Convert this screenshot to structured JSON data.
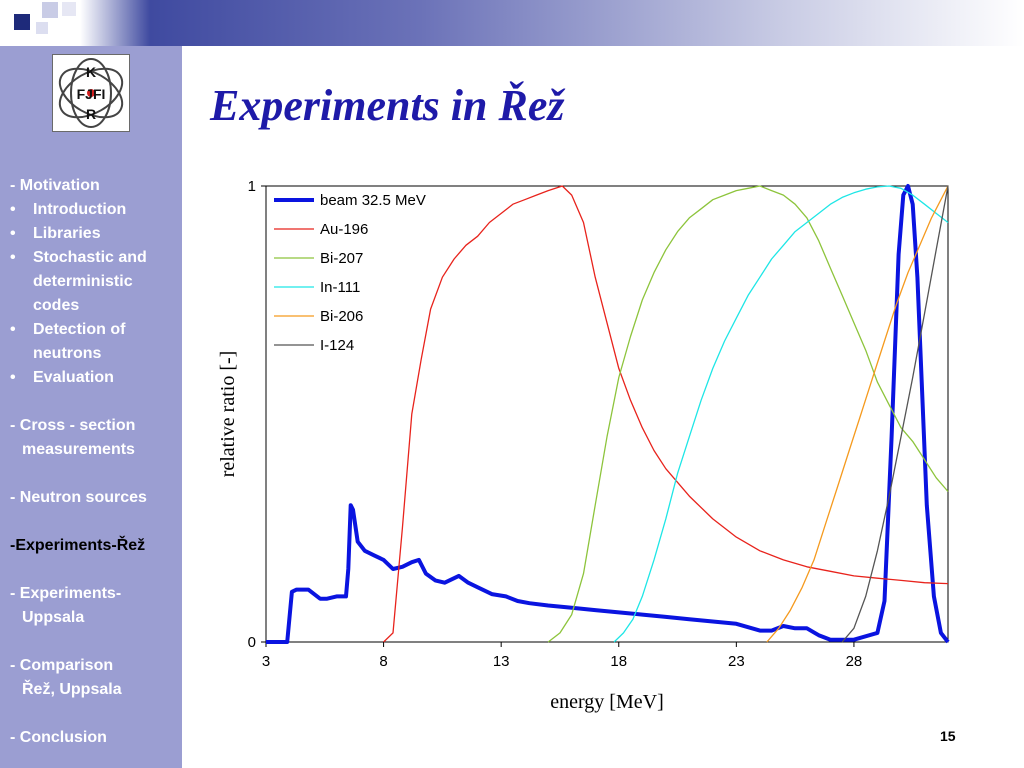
{
  "slide": {
    "title": "Experiments in Řež",
    "page_number": "15"
  },
  "logo": {
    "letters": [
      "K",
      "FJFI",
      "R"
    ]
  },
  "nav": [
    {
      "text": "- Motivation",
      "kind": "plain"
    },
    {
      "text": "Introduction",
      "kind": "bullet"
    },
    {
      "text": "Libraries",
      "kind": "bullet"
    },
    {
      "text": "Stochastic and",
      "kind": "bullet"
    },
    {
      "text": "deterministic",
      "kind": "indent"
    },
    {
      "text": "codes",
      "kind": "indent"
    },
    {
      "text": "Detection of",
      "kind": "bullet"
    },
    {
      "text": "neutrons",
      "kind": "indent"
    },
    {
      "text": "Evaluation",
      "kind": "bullet"
    },
    {
      "text": "",
      "kind": "gap"
    },
    {
      "text": "- Cross - section",
      "kind": "plain"
    },
    {
      "text": "measurements",
      "kind": "indent2"
    },
    {
      "text": "",
      "kind": "gap"
    },
    {
      "text": "- Neutron sources",
      "kind": "plain"
    },
    {
      "text": "",
      "kind": "gap"
    },
    {
      "text": "-Experiments-Řež",
      "kind": "active"
    },
    {
      "text": "",
      "kind": "gap"
    },
    {
      "text": "- Experiments-",
      "kind": "plain"
    },
    {
      "text": "Uppsala",
      "kind": "indent2"
    },
    {
      "text": "",
      "kind": "gap"
    },
    {
      "text": "- Comparison",
      "kind": "plain"
    },
    {
      "text": "Řež, Uppsala",
      "kind": "indent2"
    },
    {
      "text": "",
      "kind": "gap"
    },
    {
      "text": "- Conclusion",
      "kind": "plain"
    }
  ],
  "chart_data": {
    "type": "line",
    "title": "",
    "xlabel": "energy [MeV]",
    "ylabel": "relative ratio [-]",
    "xlim": [
      3,
      32
    ],
    "ylim": [
      0,
      1
    ],
    "xticks": [
      3,
      8,
      13,
      18,
      23,
      28
    ],
    "yticks": [
      0,
      1
    ],
    "legend_position": "top-left",
    "grid": false,
    "series": [
      {
        "name": "beam 32.5 MeV",
        "color": "#0a14e0",
        "thick": true,
        "x": [
          3,
          3.9,
          4.1,
          4.3,
          4.8,
          5.3,
          5.6,
          6,
          6.4,
          6.5,
          6.6,
          6.7,
          6.9,
          7.2,
          7.6,
          8,
          8.4,
          8.8,
          9.2,
          9.5,
          9.8,
          10.2,
          10.6,
          11,
          11.2,
          11.6,
          12,
          12.6,
          13.2,
          13.7,
          14.2,
          15,
          16,
          17,
          18,
          19,
          20,
          21,
          22,
          23,
          24,
          24.5,
          25,
          25.5,
          26,
          26.5,
          27,
          28,
          29,
          29.3,
          29.6,
          29.9,
          30.1,
          30.3,
          30.5,
          30.7,
          30.9,
          31.1,
          31.4,
          31.7,
          32
        ],
        "y": [
          0,
          0,
          0.11,
          0.115,
          0.115,
          0.095,
          0.095,
          0.1,
          0.1,
          0.16,
          0.3,
          0.29,
          0.22,
          0.2,
          0.19,
          0.18,
          0.16,
          0.165,
          0.175,
          0.18,
          0.15,
          0.135,
          0.13,
          0.14,
          0.145,
          0.13,
          0.12,
          0.105,
          0.1,
          0.09,
          0.085,
          0.08,
          0.075,
          0.07,
          0.065,
          0.06,
          0.055,
          0.05,
          0.045,
          0.04,
          0.025,
          0.025,
          0.035,
          0.03,
          0.03,
          0.015,
          0.005,
          0.005,
          0.02,
          0.09,
          0.45,
          0.85,
          0.98,
          1.0,
          0.96,
          0.8,
          0.55,
          0.3,
          0.1,
          0.02,
          0
        ]
      },
      {
        "name": "Au-196",
        "color": "#e8231c",
        "x": [
          8,
          8.4,
          8.8,
          9.2,
          9.6,
          10,
          10.5,
          11,
          11.5,
          12,
          12.5,
          13,
          13.5,
          14,
          14.5,
          15,
          15.6,
          16,
          16.5,
          17,
          17.5,
          18,
          18.5,
          19,
          19.5,
          20,
          21,
          22,
          23,
          24,
          25,
          26,
          27,
          28,
          29,
          30,
          31,
          32
        ],
        "y": [
          0,
          0.02,
          0.25,
          0.5,
          0.62,
          0.73,
          0.8,
          0.84,
          0.87,
          0.89,
          0.92,
          0.94,
          0.96,
          0.97,
          0.98,
          0.99,
          1.0,
          0.98,
          0.92,
          0.8,
          0.7,
          0.6,
          0.53,
          0.47,
          0.42,
          0.38,
          0.32,
          0.27,
          0.23,
          0.2,
          0.18,
          0.165,
          0.155,
          0.145,
          0.14,
          0.135,
          0.13,
          0.128
        ]
      },
      {
        "name": "Bi-207",
        "color": "#8dc43c",
        "x": [
          15,
          15.5,
          16,
          16.5,
          17,
          17.5,
          18,
          18.5,
          19,
          19.5,
          20,
          20.5,
          21,
          21.5,
          22,
          22.5,
          23,
          23.5,
          24,
          24.5,
          25,
          25.5,
          26,
          26.5,
          27,
          27.5,
          28,
          28.5,
          29,
          29.5,
          30,
          30.5,
          31,
          31.5,
          32
        ],
        "y": [
          0,
          0.02,
          0.06,
          0.15,
          0.3,
          0.45,
          0.58,
          0.67,
          0.75,
          0.81,
          0.86,
          0.9,
          0.93,
          0.95,
          0.97,
          0.98,
          0.99,
          0.995,
          1.0,
          0.99,
          0.98,
          0.96,
          0.93,
          0.88,
          0.82,
          0.76,
          0.7,
          0.64,
          0.57,
          0.52,
          0.47,
          0.44,
          0.4,
          0.36,
          0.33
        ]
      },
      {
        "name": "In-111",
        "color": "#1ee6e6",
        "x": [
          17.8,
          18.2,
          18.6,
          19,
          19.5,
          20,
          20.5,
          21,
          21.5,
          22,
          22.5,
          23,
          23.5,
          24,
          24.5,
          25,
          25.5,
          26,
          26.5,
          27,
          27.5,
          28,
          28.5,
          29,
          29.5,
          30,
          30.5,
          31,
          31.5,
          32
        ],
        "y": [
          0,
          0.02,
          0.05,
          0.1,
          0.18,
          0.27,
          0.37,
          0.45,
          0.53,
          0.6,
          0.66,
          0.71,
          0.76,
          0.8,
          0.84,
          0.87,
          0.9,
          0.92,
          0.94,
          0.96,
          0.975,
          0.985,
          0.993,
          0.998,
          1.0,
          0.995,
          0.98,
          0.96,
          0.94,
          0.92
        ]
      },
      {
        "name": "Bi-206",
        "color": "#f59a1e",
        "x": [
          24.3,
          24.8,
          25.3,
          25.8,
          26.3,
          26.8,
          27.3,
          27.8,
          28.3,
          28.8,
          29.3,
          29.8,
          30.3,
          30.8,
          31.3,
          31.8,
          32
        ],
        "y": [
          0,
          0.03,
          0.07,
          0.12,
          0.18,
          0.26,
          0.34,
          0.42,
          0.5,
          0.58,
          0.66,
          0.74,
          0.81,
          0.87,
          0.93,
          0.98,
          1.0
        ]
      },
      {
        "name": "I-124",
        "color": "#555555",
        "x": [
          27.5,
          28,
          28.5,
          29,
          29.5,
          30,
          30.5,
          31,
          31.5,
          32
        ],
        "y": [
          0,
          0.03,
          0.1,
          0.2,
          0.32,
          0.45,
          0.58,
          0.72,
          0.86,
          1.0
        ]
      }
    ]
  }
}
